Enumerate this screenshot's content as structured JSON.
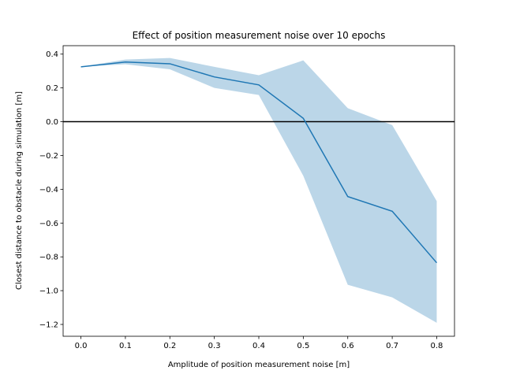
{
  "chart_data": {
    "type": "line",
    "title": "Effect of position measurement noise over 10 epochs",
    "xlabel": "Amplitude of position measurement noise [m]",
    "ylabel": "Closest distance to obstacle during simulation [m]",
    "xlim": [
      -0.04,
      0.84
    ],
    "ylim": [
      -1.27,
      0.45
    ],
    "xticks": [
      0.0,
      0.1,
      0.2,
      0.3,
      0.4,
      0.5,
      0.6,
      0.7,
      0.8
    ],
    "xtick_labels": [
      "0.0",
      "0.1",
      "0.2",
      "0.3",
      "0.4",
      "0.5",
      "0.6",
      "0.7",
      "0.8"
    ],
    "yticks": [
      0.4,
      0.2,
      0.0,
      -0.2,
      -0.4,
      -0.6,
      -0.8,
      -1.0,
      -1.2
    ],
    "ytick_labels": [
      "0.4",
      "0.2",
      "0.0",
      "−0.2",
      "−0.4",
      "−0.6",
      "−0.8",
      "−1.0",
      "−1.2"
    ],
    "x": [
      0.0,
      0.1,
      0.2,
      0.3,
      0.4,
      0.5,
      0.6,
      0.7,
      0.8
    ],
    "series": [
      {
        "values": [
          0.325,
          0.353,
          0.343,
          0.265,
          0.218,
          0.02,
          -0.443,
          -0.53,
          -0.835
        ]
      }
    ],
    "band": {
      "upper": [
        0.325,
        0.368,
        0.377,
        0.325,
        0.275,
        0.363,
        0.08,
        -0.02,
        -0.47
      ],
      "lower": [
        0.325,
        0.34,
        0.31,
        0.2,
        0.158,
        -0.32,
        -0.965,
        -1.04,
        -1.19
      ]
    },
    "reference_line_y": 0.0,
    "grid": false,
    "colors": {
      "line": "#1f77b4",
      "band": "#1f77b4",
      "reference": "#000000",
      "axes": "#000000"
    }
  }
}
